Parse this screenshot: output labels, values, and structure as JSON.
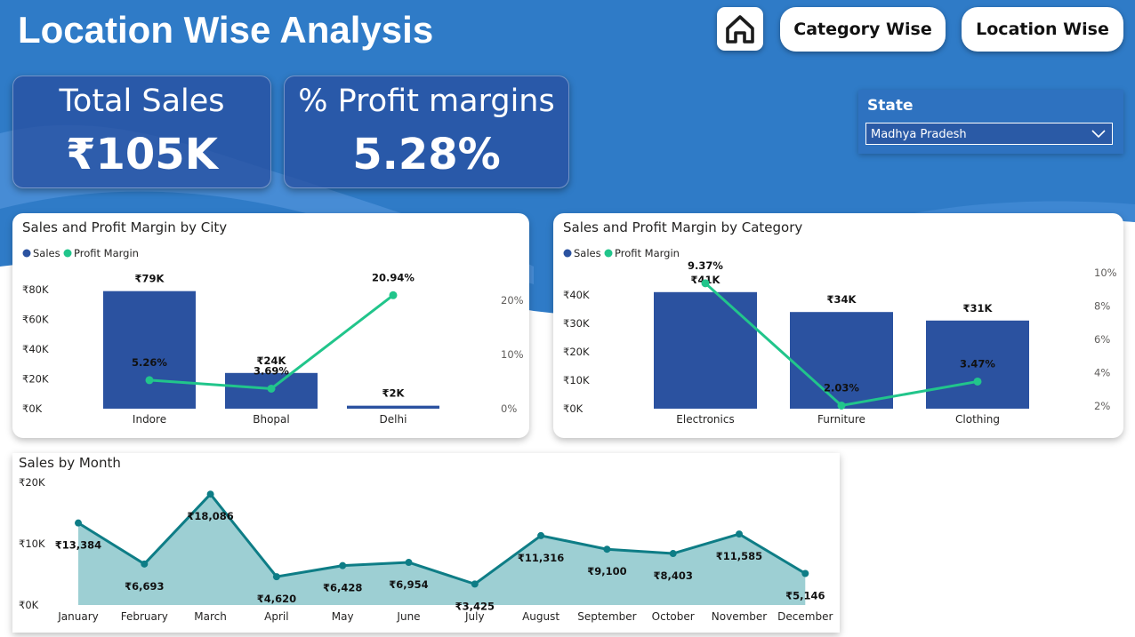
{
  "page": {
    "title": "Location Wise Analysis"
  },
  "nav": {
    "home_icon": "home-icon",
    "category_label": "Category Wise",
    "location_label": "Location Wise"
  },
  "kpis": {
    "sales_label": "Total Sales",
    "sales_value": "₹105K",
    "margin_label": "% Profit margins",
    "margin_value": "5.28%"
  },
  "filter": {
    "label": "State",
    "selected": "Madhya Pradesh"
  },
  "colors": {
    "bar": "#2b52a0",
    "line": "#21c58b",
    "area": "#9dcfd3",
    "area_line": "#0e7d86",
    "header_blue": "#2f7bc7"
  },
  "chart_data": [
    {
      "type": "bar",
      "title": "Sales and Profit Margin by City",
      "categories": [
        "Indore",
        "Bhopal",
        "Delhi"
      ],
      "series": [
        {
          "name": "Sales",
          "values": [
            79,
            24,
            2
          ],
          "labels": [
            "₹79K",
            "₹24K",
            "₹2K"
          ]
        },
        {
          "name": "Profit Margin",
          "values": [
            5.26,
            3.69,
            20.94
          ],
          "labels": [
            "5.26%",
            "3.69%",
            "20.94%"
          ]
        }
      ],
      "y_ticks": [
        "₹0K",
        "₹20K",
        "₹40K",
        "₹60K",
        "₹80K"
      ],
      "y2_ticks": [
        "0%",
        "10%",
        "20%"
      ],
      "ylim": [
        0,
        80
      ],
      "y2lim": [
        0,
        20
      ],
      "legend": "top-left"
    },
    {
      "type": "bar",
      "title": "Sales and Profit Margin by Category",
      "categories": [
        "Electronics",
        "Furniture",
        "Clothing"
      ],
      "series": [
        {
          "name": "Sales",
          "values": [
            41,
            34,
            31
          ],
          "labels": [
            "₹41K",
            "₹34K",
            "₹31K"
          ]
        },
        {
          "name": "Profit Margin",
          "values": [
            9.37,
            2.03,
            3.47
          ],
          "labels": [
            "9.37%",
            "2.03%",
            "3.47%"
          ]
        }
      ],
      "y_ticks": [
        "₹0K",
        "₹10K",
        "₹20K",
        "₹30K",
        "₹40K"
      ],
      "y2_ticks": [
        "2%",
        "4%",
        "6%",
        "8%",
        "10%"
      ],
      "ylim": [
        0,
        40
      ],
      "y2lim": [
        2,
        10
      ],
      "legend": "top-left"
    },
    {
      "type": "area",
      "title": "Sales by Month",
      "categories": [
        "January",
        "February",
        "March",
        "April",
        "May",
        "June",
        "July",
        "August",
        "September",
        "October",
        "November",
        "December"
      ],
      "values": [
        13384,
        6693,
        18086,
        4620,
        6428,
        6954,
        3425,
        11316,
        9100,
        8403,
        11585,
        5146
      ],
      "labels": [
        "₹13,384",
        "₹6,693",
        "₹18,086",
        "₹4,620",
        "₹6,428",
        "₹6,954",
        "₹3,425",
        "₹11,316",
        "₹9,100",
        "₹8,403",
        "₹11,585",
        "₹5,146"
      ],
      "y_ticks": [
        "₹0K",
        "₹10K",
        "₹20K"
      ],
      "ylim": [
        0,
        20000
      ]
    }
  ]
}
